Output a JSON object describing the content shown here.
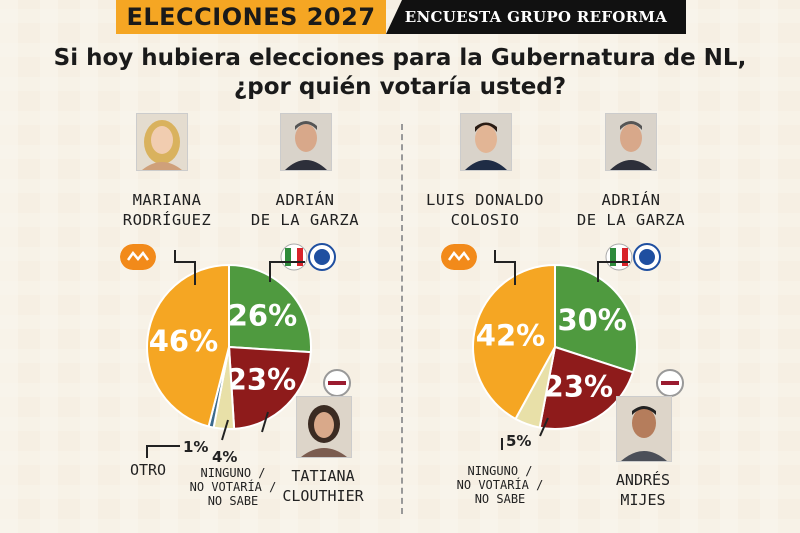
{
  "header": {
    "left": "ELECCIONES 2027",
    "right": "ENCUESTA GRUPO REFORMA"
  },
  "question": {
    "line1": "Si hoy hubiera elecciones para la Gubernatura de NL,",
    "line2": "¿por quién votaría usted?"
  },
  "chart_data": [
    {
      "type": "pie",
      "title": "",
      "slices": [
        {
          "name_line1": "ADRIÁN",
          "name_line2": "DE LA GARZA",
          "value": 26,
          "label": "26%",
          "color": "#4f9a3f"
        },
        {
          "name_line1": "TATIANA",
          "name_line2": "CLOUTHIER",
          "value": 23,
          "label": "23%",
          "color": "#8e1b1b"
        },
        {
          "name_line1": "NINGUNO /",
          "name_line2": "NO VOTARÍA /",
          "name_line3": "NO SABE",
          "value": 4,
          "label": "4%",
          "color": "#e8e0a8"
        },
        {
          "name_line1": "OTRO",
          "value": 1,
          "label": "1%",
          "color": "#3c6a8c"
        },
        {
          "name_line1": "MARIANA",
          "name_line2": "RODRÍGUEZ",
          "value": 46,
          "label": "46%",
          "color": "#f5a623"
        }
      ]
    },
    {
      "type": "pie",
      "title": "",
      "slices": [
        {
          "name_line1": "ADRIÁN",
          "name_line2": "DE LA GARZA",
          "value": 30,
          "label": "30%",
          "color": "#4f9a3f"
        },
        {
          "name_line1": "ANDRÉS",
          "name_line2": "MIJES",
          "value": 23,
          "label": "23%",
          "color": "#8e1b1b"
        },
        {
          "name_line1": "NINGUNO /",
          "name_line2": "NO VOTARÍA /",
          "name_line3": "NO SABE",
          "value": 5,
          "label": "5%",
          "color": "#e8e0a8"
        },
        {
          "name_line1": "LUIS DONALDO",
          "name_line2": "COLOSIO",
          "value": 42,
          "label": "42%",
          "color": "#f5a623"
        }
      ]
    }
  ]
}
